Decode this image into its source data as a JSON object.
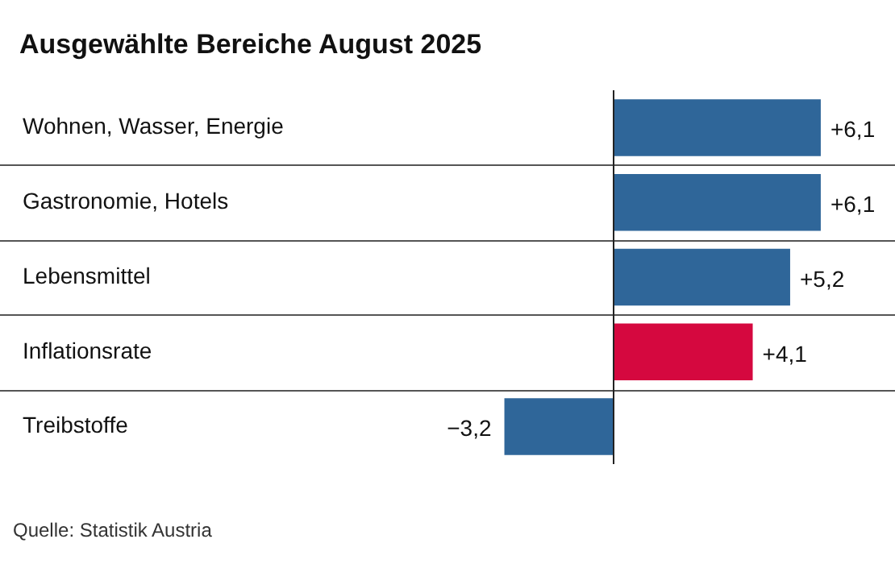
{
  "chart_data": {
    "type": "bar",
    "orientation": "horizontal",
    "title": "Ausgewählte Bereiche August 2025",
    "categories": [
      "Wohnen, Wasser, Energie",
      "Gastronomie, Hotels",
      "Lebensmittel",
      "Inflationsrate",
      "Treibstoffe"
    ],
    "values": [
      6.1,
      6.1,
      5.2,
      4.1,
      -3.2
    ],
    "colors": [
      "#2f6699",
      "#2f6699",
      "#2f6699",
      "#d5083f",
      "#2f6699"
    ],
    "value_labels": [
      "+6,1",
      "+6,1",
      "+5,2",
      "+4,1",
      "−3,2"
    ],
    "grid": "y",
    "tick_labels": false,
    "annotations": [
      "Quelle: Statistik Austria"
    ]
  }
}
